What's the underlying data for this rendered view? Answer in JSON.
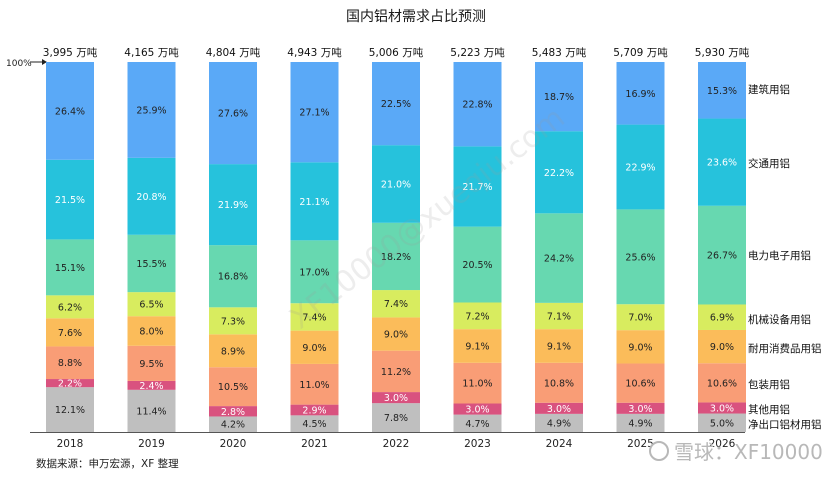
{
  "chart_data": {
    "type": "bar",
    "stacked": true,
    "percent": true,
    "title": "国内铝材需求占比预测",
    "ylabel_marker": "100%",
    "categories": [
      "2018",
      "2019",
      "2020",
      "2021",
      "2022",
      "2023",
      "2024",
      "2025",
      "2026"
    ],
    "totals": [
      "3,995 万吨",
      "4,165 万吨",
      "4,804 万吨",
      "4,943 万吨",
      "5,006 万吨",
      "5,223 万吨",
      "5,483 万吨",
      "5,709 万吨",
      "5,930 万吨"
    ],
    "series": [
      {
        "name": "净出口铝材用铝",
        "color": "#bfbfbf",
        "label_color": "#222222",
        "values": [
          12.1,
          11.4,
          4.2,
          4.5,
          7.8,
          4.7,
          4.9,
          4.9,
          5.0
        ],
        "labels": [
          "12.1%",
          "11.4%",
          "4.2%",
          "4.5%",
          "7.8%",
          "4.7%",
          "4.9%",
          "4.9%",
          "5.0%"
        ]
      },
      {
        "name": "其他用铝",
        "color": "#d9527f",
        "label_color": "#ffffff",
        "values": [
          2.2,
          2.4,
          2.8,
          2.9,
          3.0,
          3.0,
          3.0,
          3.0,
          3.0
        ],
        "labels": [
          "2.2%",
          "2.4%",
          "2.8%",
          "2.9%",
          "3.0%",
          "3.0%",
          "3.0%",
          "3.0%",
          "3.0%"
        ]
      },
      {
        "name": "包装用铝",
        "color": "#f99d76",
        "label_color": "#222222",
        "values": [
          8.8,
          9.5,
          10.5,
          11.0,
          11.2,
          11.0,
          10.8,
          10.6,
          10.6
        ],
        "labels": [
          "8.8%",
          "9.5%",
          "10.5%",
          "11.0%",
          "11.2%",
          "11.0%",
          "10.8%",
          "10.6%",
          "10.6%"
        ]
      },
      {
        "name": "耐用消费品用铝",
        "color": "#fbbc5a",
        "label_color": "#222222",
        "values": [
          7.6,
          8.0,
          8.9,
          9.0,
          9.0,
          9.1,
          9.1,
          9.0,
          9.0
        ],
        "labels": [
          "7.6%",
          "8.0%",
          "8.9%",
          "9.0%",
          "9.0%",
          "9.1%",
          "9.1%",
          "9.0%",
          "9.0%"
        ]
      },
      {
        "name": "机械设备用铝",
        "color": "#d8ec5f",
        "label_color": "#222222",
        "values": [
          6.2,
          6.5,
          7.3,
          7.4,
          7.4,
          7.2,
          7.1,
          7.0,
          6.9
        ],
        "labels": [
          "6.2%",
          "6.5%",
          "7.3%",
          "7.4%",
          "7.4%",
          "7.2%",
          "7.1%",
          "7.0%",
          "6.9%"
        ]
      },
      {
        "name": "电力电子用铝",
        "color": "#67d8b0",
        "label_color": "#222222",
        "values": [
          15.1,
          15.5,
          16.8,
          17.0,
          18.2,
          20.5,
          24.2,
          25.6,
          26.7
        ],
        "labels": [
          "15.1%",
          "15.5%",
          "16.8%",
          "17.0%",
          "18.2%",
          "20.5%",
          "24.2%",
          "25.6%",
          "26.7%"
        ]
      },
      {
        "name": "交通用铝",
        "color": "#26c2dc",
        "label_color": "#ffffff",
        "values": [
          21.5,
          20.8,
          21.9,
          21.1,
          21.0,
          21.7,
          22.2,
          22.9,
          23.6
        ],
        "labels": [
          "21.5%",
          "20.8%",
          "21.9%",
          "21.1%",
          "21.0%",
          "21.7%",
          "22.2%",
          "22.9%",
          "23.6%"
        ]
      },
      {
        "name": "建筑用铝",
        "color": "#5aa9f7",
        "label_color": "#222222",
        "values": [
          26.4,
          25.9,
          27.6,
          27.1,
          22.5,
          22.8,
          18.7,
          16.9,
          15.3
        ],
        "labels": [
          "26.4%",
          "25.9%",
          "27.6%",
          "27.1%",
          "22.5%",
          "22.8%",
          "18.7%",
          "16.9%",
          "15.3%"
        ]
      }
    ],
    "source": "数据来源：申万宏源，XF 整理",
    "watermark": "雪球：XF10000",
    "watermark_diagonal": "XF10000@xueqiu.com"
  }
}
